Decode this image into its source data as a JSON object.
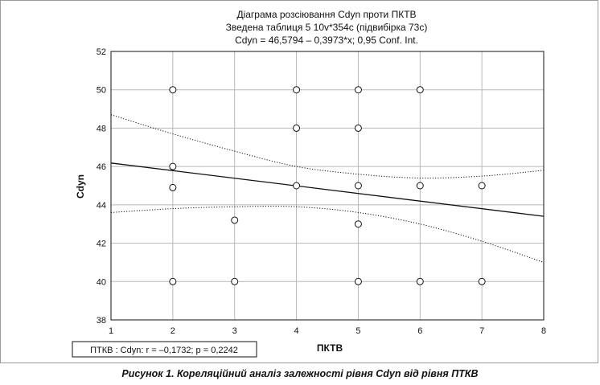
{
  "chart_data": {
    "type": "scatter",
    "title_lines": [
      "Діаграма розсіювання Cdyn проти ПКТВ",
      "Зведена таблиця 5 10v*354c (підвибірка 73c)",
      "Cdyn = 46,5794 – 0,3973*x; 0,95 Conf. Int."
    ],
    "xlabel": "ПКТВ",
    "ylabel": "Cdyn",
    "xlim": [
      1,
      8
    ],
    "ylim": [
      38,
      52
    ],
    "xticks": [
      1,
      2,
      3,
      4,
      5,
      6,
      7,
      8
    ],
    "yticks": [
      38,
      40,
      42,
      44,
      46,
      48,
      50,
      52
    ],
    "grid": true,
    "points": [
      {
        "x": 2,
        "y": 50
      },
      {
        "x": 2,
        "y": 46
      },
      {
        "x": 2,
        "y": 44.9
      },
      {
        "x": 2,
        "y": 40
      },
      {
        "x": 3,
        "y": 43.2
      },
      {
        "x": 3,
        "y": 40
      },
      {
        "x": 4,
        "y": 50
      },
      {
        "x": 4,
        "y": 48
      },
      {
        "x": 4,
        "y": 45
      },
      {
        "x": 5,
        "y": 50
      },
      {
        "x": 5,
        "y": 48
      },
      {
        "x": 5,
        "y": 45
      },
      {
        "x": 5,
        "y": 43
      },
      {
        "x": 5,
        "y": 40
      },
      {
        "x": 6,
        "y": 50
      },
      {
        "x": 6,
        "y": 45
      },
      {
        "x": 6,
        "y": 40
      },
      {
        "x": 7,
        "y": 45
      },
      {
        "x": 7,
        "y": 40
      }
    ],
    "regression": {
      "intercept": 46.5794,
      "slope": -0.3973
    },
    "confidence_upper": [
      {
        "x": 1,
        "y": 48.7
      },
      {
        "x": 2,
        "y": 47.7
      },
      {
        "x": 3,
        "y": 46.8
      },
      {
        "x": 4,
        "y": 46.0
      },
      {
        "x": 5,
        "y": 45.6
      },
      {
        "x": 6,
        "y": 45.4
      },
      {
        "x": 7,
        "y": 45.5
      },
      {
        "x": 8,
        "y": 45.8
      }
    ],
    "confidence_lower": [
      {
        "x": 1,
        "y": 43.6
      },
      {
        "x": 2,
        "y": 43.8
      },
      {
        "x": 3,
        "y": 43.9
      },
      {
        "x": 4,
        "y": 43.9
      },
      {
        "x": 5,
        "y": 43.6
      },
      {
        "x": 6,
        "y": 43.0
      },
      {
        "x": 7,
        "y": 42.1
      },
      {
        "x": 8,
        "y": 41.0
      }
    ],
    "stats_legend": "ПТКВ : Cdyn: r = –0,1732; p = 0,2242"
  },
  "caption": "Рисунок 1. Кореляційний аналіз залежності рівня Cdyn від рівня ПТКВ"
}
